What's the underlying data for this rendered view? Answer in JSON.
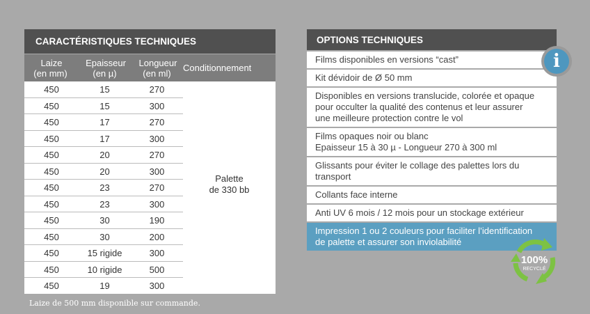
{
  "left": {
    "title": "CARACTÉRISTIQUES TECHNIQUES",
    "columns": [
      [
        "Laize",
        "(en mm)"
      ],
      [
        "Epaisseur",
        "(en µ)"
      ],
      [
        "Longueur",
        "(en ml)"
      ],
      [
        "Conditionnement",
        ""
      ]
    ],
    "rows": [
      [
        "450",
        "15",
        "270"
      ],
      [
        "450",
        "15",
        "300"
      ],
      [
        "450",
        "17",
        "270"
      ],
      [
        "450",
        "17",
        "300"
      ],
      [
        "450",
        "20",
        "270"
      ],
      [
        "450",
        "20",
        "300"
      ],
      [
        "450",
        "23",
        "270"
      ],
      [
        "450",
        "23",
        "300"
      ],
      [
        "450",
        "30",
        "190"
      ],
      [
        "450",
        "30",
        "200"
      ],
      [
        "450",
        "15 rigide",
        "300"
      ],
      [
        "450",
        "10 rigide",
        "500"
      ],
      [
        "450",
        "19",
        "300"
      ]
    ],
    "conditionnement": [
      "Palette",
      "de 330 bb"
    ],
    "footnote": "Laize de 500 mm disponible sur commande."
  },
  "right": {
    "title": "OPTIONS TECHNIQUES",
    "options": [
      [
        "Films disponibles en versions “cast”"
      ],
      [
        "Kit dévidoir de Ø 50 mm"
      ],
      [
        "Disponibles en versions translucide, colorée et opaque",
        "pour occulter la qualité des contenus et leur assurer",
        "une meilleure protection contre le vol"
      ],
      [
        "Films opaques noir ou blanc",
        "Epaisseur 15 à 30 µ - Longueur 270 à 300 ml"
      ],
      [
        "Glissants pour éviter le collage des palettes lors du transport"
      ],
      [
        "Collants face interne"
      ],
      [
        "Anti UV 6 mois / 12 mois pour un stockage extérieur"
      ],
      [
        "Impression 1 ou 2 couleurs pour faciliter l’identification",
        "de palette et assurer son inviolabilité"
      ]
    ],
    "highlight_index": 7,
    "info_icon": "i"
  },
  "badge": {
    "percent": "100%",
    "label": "RECYCLÉ",
    "color": "#7dc243"
  },
  "colors": {
    "header": "#505050",
    "subheader": "#7d7d7d",
    "accent": "#5b9fc1",
    "background": "#a9a9a9"
  }
}
